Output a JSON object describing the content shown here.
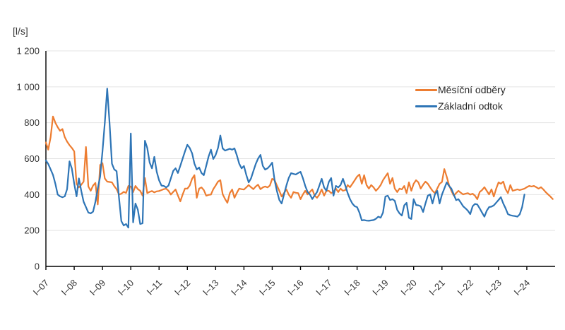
{
  "page": {
    "background": "#ffffff"
  },
  "chart_data": {
    "type": "line",
    "title": "",
    "unit_label": "[l/s]",
    "x_start": "2007-01",
    "frequency": "monthly",
    "x_tick_labels": [
      "I–07",
      "I–08",
      "I–09",
      "I–10",
      "I–11",
      "I–12",
      "I–13",
      "I–14",
      "I–15",
      "I–16",
      "I–17",
      "I–18",
      "I–19",
      "I–20",
      "I–21",
      "I–22",
      "I–23",
      "I–24"
    ],
    "y_tick_labels": [
      "0",
      "200",
      "400",
      "600",
      "800",
      "1 000",
      "1 200"
    ],
    "y_axis": {
      "min": 0,
      "max": 1200,
      "step": 200
    },
    "grid": "horizontal-only",
    "legend_position": "inside-top-right",
    "colors": {
      "grid": "#e4e4e4",
      "axis": "#000000",
      "text": "#333333"
    },
    "series": [
      {
        "name": "Měsíční odběry",
        "color": "#ED7D31",
        "values": [
          690,
          650,
          720,
          835,
          800,
          775,
          755,
          765,
          720,
          695,
          675,
          660,
          640,
          460,
          440,
          455,
          472,
          665,
          445,
          421,
          450,
          465,
          345,
          565,
          575,
          490,
          472,
          470,
          468,
          447,
          430,
          400,
          405,
          415,
          409,
          448,
          445,
          414,
          448,
          430,
          421,
          394,
          492,
          408,
          415,
          420,
          412,
          418,
          420,
          425,
          430,
          433,
          421,
          400,
          415,
          428,
          395,
          362,
          400,
          433,
          433,
          450,
          488,
          508,
          382,
          433,
          440,
          425,
          394,
          398,
          400,
          430,
          450,
          472,
          480,
          402,
          375,
          354,
          408,
          428,
          382,
          410,
          433,
          430,
          428,
          440,
          453,
          441,
          430,
          445,
          455,
          430,
          440,
          445,
          440,
          450,
          488,
          480,
          450,
          421,
          389,
          408,
          429,
          400,
          382,
          414,
          410,
          408,
          374,
          400,
          421,
          401,
          415,
          429,
          394,
          382,
          400,
          429,
          394,
          421,
          421,
          408,
          415,
          433,
          414,
          433,
          421,
          425,
          453,
          441,
          460,
          480,
          500,
          512,
          460,
          508,
          453,
          433,
          453,
          440,
          421,
          435,
          453,
          480,
          500,
          519,
          460,
          492,
          433,
          414,
          433,
          429,
          448,
          408,
          468,
          421,
          460,
          480,
          468,
          433,
          455,
          472,
          460,
          440,
          421,
          408,
          433,
          460,
          470,
          542,
          500,
          453,
          421,
          394,
          408,
          421,
          410,
          401,
          405,
          408,
          400,
          405,
          394,
          374,
          414,
          425,
          441,
          421,
          401,
          429,
          389,
          433,
          468,
          460,
          472,
          430,
          408,
          453,
          421,
          425,
          429,
          425,
          429,
          433,
          441,
          448,
          445,
          448,
          441,
          433,
          441,
          429,
          414,
          401,
          389,
          375
        ]
      },
      {
        "name": "Základní odtok",
        "color": "#2E75B6",
        "values": [
          590,
          570,
          540,
          510,
          460,
          400,
          390,
          385,
          390,
          430,
          585,
          545,
          460,
          390,
          490,
          420,
          360,
          330,
          300,
          295,
          305,
          360,
          433,
          500,
          640,
          800,
          990,
          800,
          572,
          540,
          530,
          382,
          252,
          228,
          236,
          216,
          740,
          245,
          350,
          315,
          236,
          240,
          700,
          660,
          578,
          546,
          610,
          527,
          480,
          450,
          448,
          440,
          450,
          490,
          532,
          546,
          520,
          560,
          600,
          640,
          677,
          660,
          630,
          572,
          540,
          551,
          520,
          508,
          560,
          611,
          650,
          598,
          620,
          660,
          729,
          657,
          645,
          650,
          655,
          650,
          657,
          618,
          572,
          546,
          559,
          510,
          468,
          490,
          530,
          570,
          600,
          621,
          560,
          539,
          546,
          560,
          578,
          480,
          420,
          370,
          350,
          400,
          450,
          492,
          519,
          515,
          512,
          520,
          527,
          492,
          448,
          415,
          400,
          375,
          395,
          414,
          450,
          488,
          440,
          421,
          470,
          492,
          394,
          448,
          440,
          453,
          488,
          450,
          408,
          374,
          350,
          335,
          330,
          300,
          256,
          258,
          255,
          254,
          256,
          258,
          265,
          277,
          271,
          300,
          389,
          394,
          370,
          374,
          365,
          315,
          295,
          283,
          340,
          354,
          271,
          264,
          374,
          342,
          340,
          335,
          303,
          350,
          394,
          401,
          350,
          401,
          421,
          350,
          400,
          433,
          468,
          448,
          433,
          400,
          369,
          374,
          355,
          335,
          323,
          310,
          291,
          335,
          348,
          345,
          323,
          300,
          277,
          310,
          330,
          333,
          340,
          355,
          370,
          385,
          350,
          323,
          291,
          285,
          282,
          280,
          277,
          290,
          330,
          400
        ]
      }
    ]
  }
}
